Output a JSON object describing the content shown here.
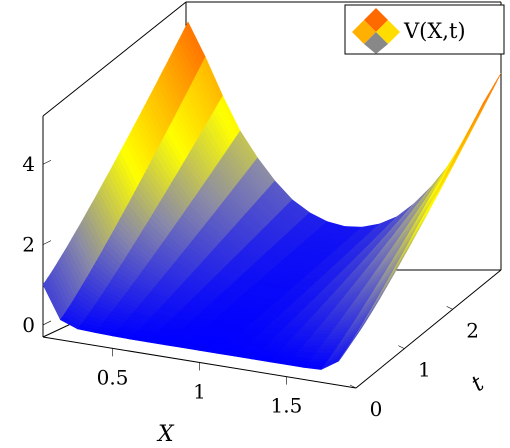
{
  "chart_data": {
    "type": "surface",
    "title": "",
    "xlabel": "X",
    "ylabel": "t",
    "zlabel": "",
    "xlim": [
      0.1,
      1.9
    ],
    "ylim": [
      0,
      3
    ],
    "zlim": [
      -0.3,
      5.2
    ],
    "x_ticks": [
      "0.5",
      "1",
      "1.5"
    ],
    "x_tick_values": [
      0.5,
      1,
      1.5
    ],
    "y_ticks": [
      "0",
      "1",
      "2"
    ],
    "y_tick_values": [
      0,
      1,
      2
    ],
    "z_ticks": [
      "0",
      "2",
      "4"
    ],
    "z_tick_values": [
      0,
      2,
      4
    ],
    "legend": {
      "placement": "top-right",
      "entries": [
        "V(X,t)"
      ]
    },
    "series": [
      {
        "name": "V(X,t)",
        "colormap": [
          "#0000ff",
          "#8888aa",
          "#ffff00",
          "#ffa500",
          "#ff4500"
        ],
        "x": [
          0.1,
          0.2,
          0.3,
          0.4,
          0.5,
          0.6,
          0.7,
          0.8,
          0.9,
          1.0,
          1.1,
          1.2,
          1.3,
          1.4,
          1.5,
          1.6,
          1.7,
          1.8,
          1.9
        ],
        "t": [
          0,
          0.5,
          1.0,
          1.5,
          2.0,
          2.5,
          3.0
        ],
        "surface_near_t0": [
          1.0,
          0.2,
          0.04,
          0.02,
          0.01,
          0.0,
          0.0,
          0.0,
          0.0,
          0.0,
          0.0,
          0.0,
          0.0,
          0.0,
          0.0,
          0.0,
          0.02,
          0.3,
          1.0
        ],
        "surface_far_t3": [
          4.6,
          3.8,
          2.9,
          2.1,
          1.5,
          1.0,
          0.6,
          0.35,
          0.2,
          0.15,
          0.2,
          0.35,
          0.6,
          1.0,
          1.5,
          2.1,
          2.9,
          3.8,
          4.6
        ]
      }
    ]
  }
}
